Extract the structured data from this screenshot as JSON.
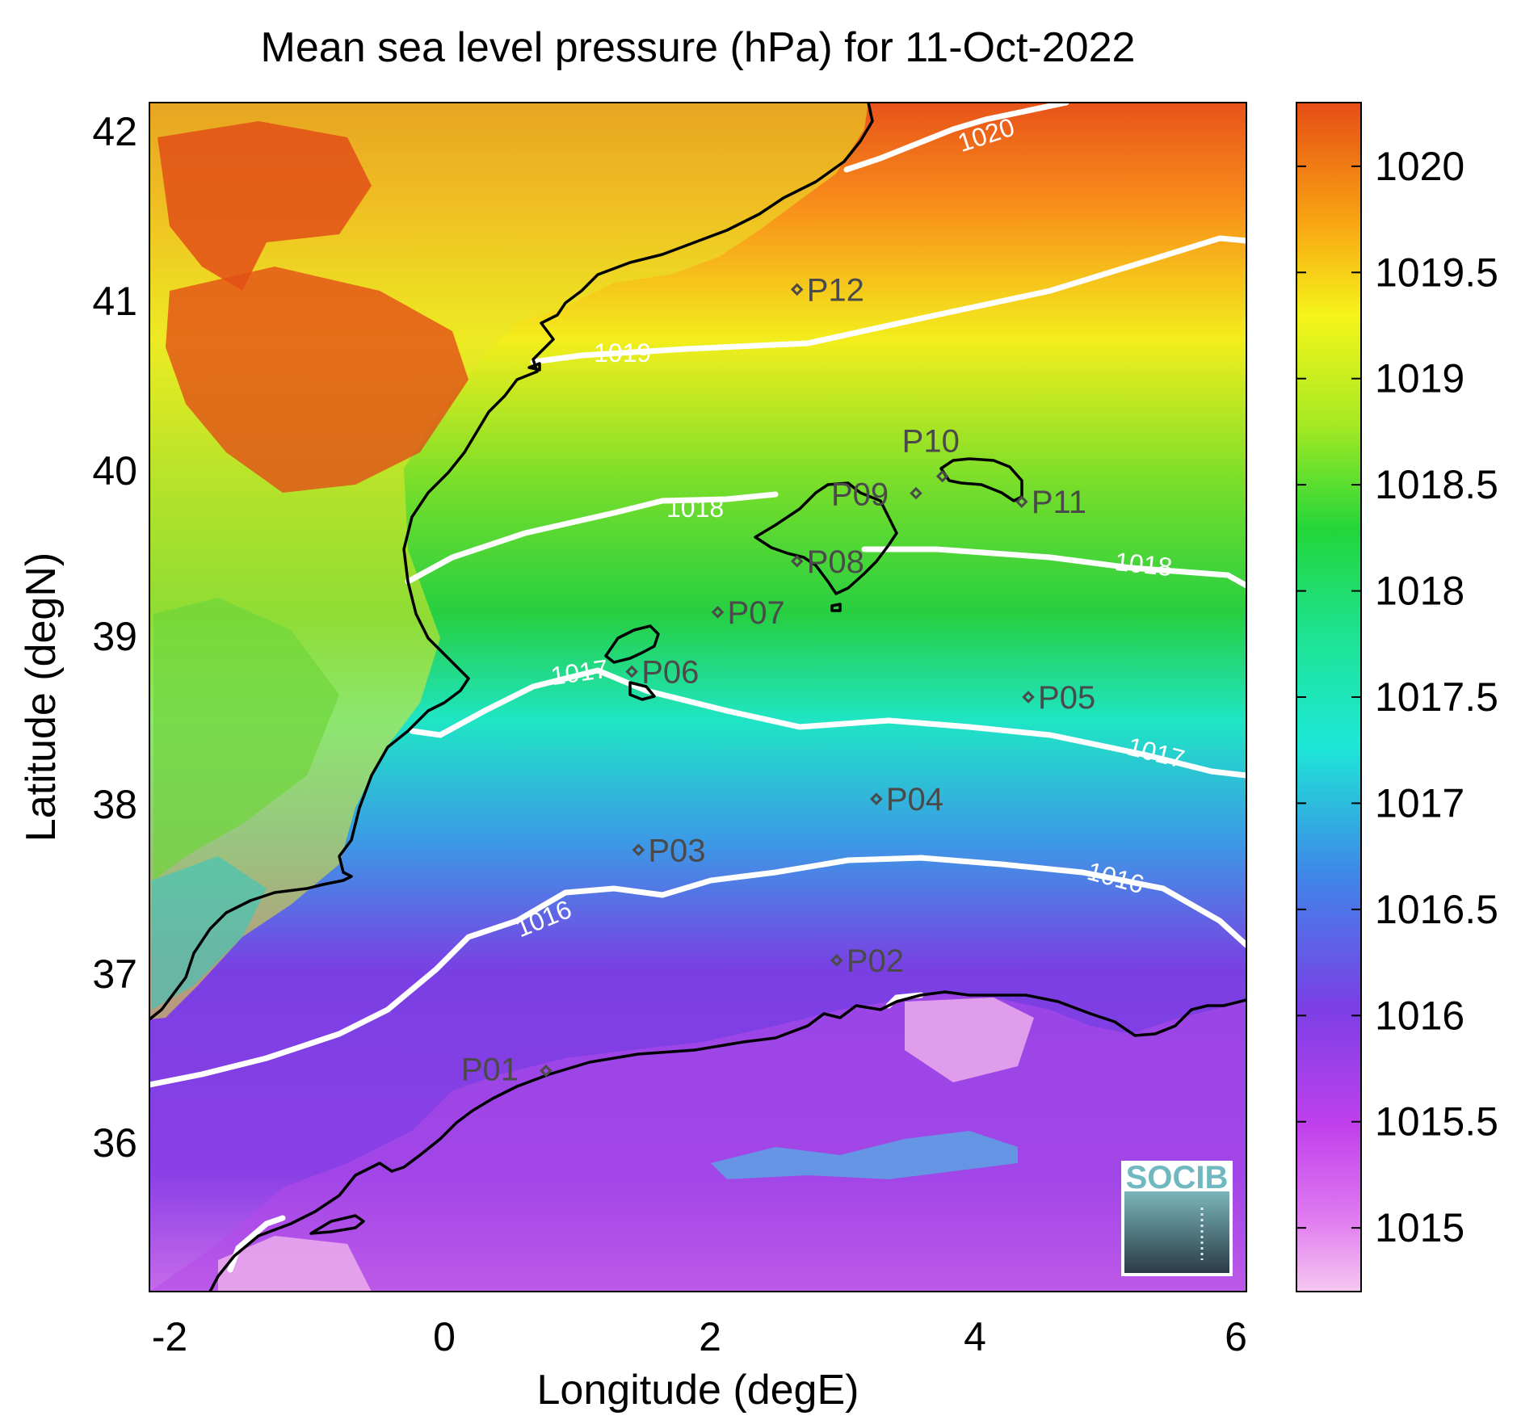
{
  "title": "Mean sea level pressure (hPa) for 11-Oct-2022",
  "xlabel": "Longitude (degE)",
  "ylabel": "Latitude (degN)",
  "x_ticks": [
    "-2",
    "0",
    "2",
    "4",
    "6"
  ],
  "y_ticks": [
    "42",
    "41",
    "40",
    "39",
    "38",
    "37",
    "36"
  ],
  "colorbar_ticks": [
    "1020",
    "1019.5",
    "1019",
    "1018.5",
    "1018",
    "1017.5",
    "1017",
    "1016.5",
    "1016",
    "1015.5",
    "1015"
  ],
  "contour_labels": [
    "1020",
    "1019",
    "1018",
    "1018",
    "1017",
    "1017",
    "1016",
    "1016"
  ],
  "logo_text": "SOCIB",
  "chart_data": {
    "type": "heatmap",
    "title": "Mean sea level pressure (hPa) for 11-Oct-2022",
    "xlabel": "Longitude (degE)",
    "ylabel": "Latitude (degN)",
    "xlim": [
      -2.2,
      6.1
    ],
    "ylim": [
      35.2,
      42.2
    ],
    "colorbar_range_hpa": [
      1014.7,
      1020.3
    ],
    "colormap": [
      "#f5c8f0",
      "#d75cf0",
      "#7b3fe6",
      "#3a8ae8",
      "#1de8d6",
      "#22d63a",
      "#f5f51a",
      "#f9a413",
      "#e64d15"
    ],
    "contour_levels": [
      1016,
      1017,
      1018,
      1019,
      1020
    ],
    "stations": [
      {
        "id": "P01",
        "lon": 0.8,
        "lat": 36.5
      },
      {
        "id": "P02",
        "lon": 3.0,
        "lat": 37.15
      },
      {
        "id": "P03",
        "lon": 1.5,
        "lat": 37.8
      },
      {
        "id": "P04",
        "lon": 3.3,
        "lat": 38.1
      },
      {
        "id": "P05",
        "lon": 4.45,
        "lat": 38.7
      },
      {
        "id": "P06",
        "lon": 1.45,
        "lat": 38.85
      },
      {
        "id": "P07",
        "lon": 2.1,
        "lat": 39.2
      },
      {
        "id": "P08",
        "lon": 2.7,
        "lat": 39.5
      },
      {
        "id": "P09",
        "lon": 3.6,
        "lat": 39.9
      },
      {
        "id": "P10",
        "lon": 3.8,
        "lat": 40.0
      },
      {
        "id": "P11",
        "lon": 4.4,
        "lat": 39.85
      },
      {
        "id": "P12",
        "lon": 2.7,
        "lat": 41.1
      }
    ]
  }
}
